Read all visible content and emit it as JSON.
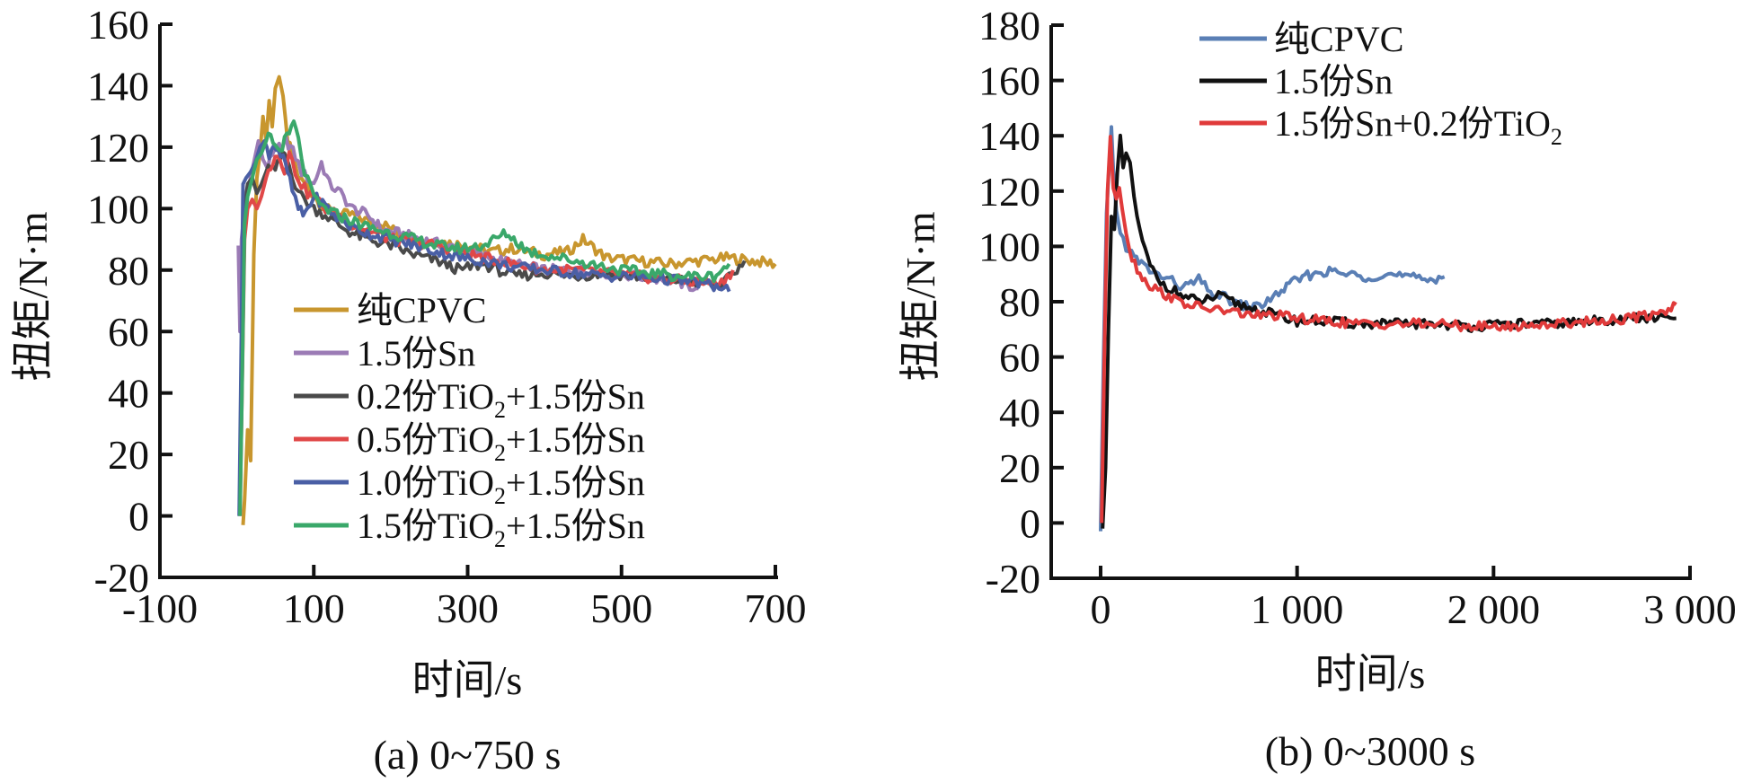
{
  "chart_data": [
    {
      "type": "line",
      "subtitle": "(a) 0~750 s",
      "xlabel": "时间/s",
      "ylabel": "扭矩/N·m",
      "xlim": [
        -100,
        700
      ],
      "ylim": [
        -20,
        160
      ],
      "xticks": [
        "-100",
        "100",
        "300",
        "500",
        "700"
      ],
      "xtick_values": [
        -100,
        100,
        300,
        500,
        700
      ],
      "yticks": [
        "160",
        "140",
        "120",
        "100",
        "80",
        "60",
        "40",
        "20",
        "0",
        "-20"
      ],
      "ytick_values": [
        160,
        140,
        120,
        100,
        80,
        60,
        40,
        20,
        0,
        -20
      ],
      "legend_position": "center",
      "grid": false,
      "series": [
        {
          "name": "纯CPVC",
          "name_main": "纯CPVC",
          "name_sub": "",
          "name_tail": "",
          "color": "#c8962e",
          "x": [
            8,
            10,
            14,
            18,
            22,
            26,
            30,
            34,
            38,
            42,
            46,
            50,
            55,
            60,
            66,
            72,
            80,
            90,
            100,
            115,
            130,
            150,
            170,
            190,
            210,
            240,
            270,
            300,
            330,
            360,
            400,
            430,
            450,
            480,
            520,
            560,
            600,
            640,
            670,
            700
          ],
          "y": [
            -3,
            5,
            28,
            18,
            85,
            110,
            118,
            130,
            122,
            135,
            125,
            138,
            144,
            135,
            122,
            118,
            110,
            108,
            104,
            100,
            98,
            98,
            96,
            95,
            92,
            90,
            89,
            88,
            86,
            87,
            85,
            86,
            90,
            84,
            83,
            82,
            83,
            84,
            83,
            82
          ]
        },
        {
          "name": "1.5份Sn",
          "name_main": "1.5份Sn",
          "name_sub": "",
          "name_tail": "",
          "color": "#9b7bb5",
          "x": [
            2,
            4,
            6,
            10,
            16,
            22,
            28,
            34,
            40,
            46,
            52,
            58,
            64,
            70,
            76,
            84,
            92,
            100,
            110,
            120,
            135,
            150,
            170,
            190,
            210,
            240,
            270,
            300,
            330,
            360,
            400,
            440,
            480,
            520,
            560,
            600
          ],
          "y": [
            88,
            60,
            90,
            100,
            108,
            115,
            122,
            116,
            113,
            118,
            121,
            118,
            122,
            120,
            117,
            112,
            110,
            108,
            115,
            108,
            105,
            100,
            98,
            93,
            92,
            90,
            88,
            86,
            84,
            82,
            80,
            80,
            79,
            78,
            77,
            74
          ]
        },
        {
          "name": "0.2份TiO2+1.5份Sn",
          "name_main": "0.2份TiO",
          "name_sub": "2",
          "name_tail": "+1.5份Sn",
          "color": "#4a4a4a",
          "x": [
            4,
            6,
            10,
            14,
            20,
            26,
            32,
            38,
            44,
            50,
            56,
            62,
            68,
            76,
            84,
            92,
            100,
            115,
            130,
            150,
            170,
            200,
            230,
            260,
            290,
            320,
            360,
            400,
            440,
            480,
            520,
            560,
            600,
            630,
            650,
            660
          ],
          "y": [
            0,
            40,
            100,
            108,
            110,
            105,
            108,
            112,
            114,
            112,
            116,
            118,
            114,
            108,
            104,
            102,
            100,
            98,
            95,
            92,
            90,
            88,
            85,
            83,
            80,
            82,
            78,
            79,
            78,
            79,
            78,
            77,
            76,
            75,
            80,
            83
          ]
        },
        {
          "name": "0.5份TiO2+1.5份Sn",
          "name_main": "0.5份TiO",
          "name_sub": "2",
          "name_tail": "+1.5份Sn",
          "color": "#e04848",
          "x": [
            4,
            6,
            10,
            14,
            20,
            26,
            32,
            38,
            44,
            50,
            56,
            62,
            68,
            76,
            84,
            92,
            100,
            115,
            130,
            150,
            170,
            200,
            230,
            260,
            290,
            320,
            360,
            400,
            440,
            480,
            520,
            560,
            600,
            630,
            645
          ],
          "y": [
            0,
            30,
            90,
            100,
            103,
            100,
            104,
            110,
            114,
            118,
            116,
            113,
            118,
            112,
            108,
            105,
            104,
            100,
            98,
            95,
            93,
            90,
            89,
            88,
            86,
            84,
            82,
            80,
            80,
            79,
            78,
            77,
            76,
            76,
            80
          ]
        },
        {
          "name": "1.0份TiO2+1.5份Sn",
          "name_main": "1.0份TiO",
          "name_sub": "2",
          "name_tail": "+1.5份Sn",
          "color": "#4a5fa5",
          "x": [
            3,
            5,
            8,
            12,
            18,
            24,
            30,
            36,
            42,
            48,
            54,
            60,
            66,
            72,
            80,
            86,
            92,
            100,
            115,
            130,
            150,
            170,
            200,
            230,
            260,
            290,
            320,
            360,
            400,
            440,
            480,
            520,
            560,
            600,
            630,
            640
          ],
          "y": [
            0,
            40,
            108,
            110,
            112,
            115,
            120,
            122,
            118,
            121,
            119,
            116,
            112,
            106,
            100,
            98,
            100,
            104,
            101,
            97,
            94,
            92,
            90,
            88,
            86,
            84,
            83,
            81,
            80,
            79,
            78,
            78,
            77,
            76,
            74,
            73
          ]
        },
        {
          "name": "1.5份TiO2+1.5份Sn",
          "name_main": "1.5份TiO",
          "name_sub": "2",
          "name_tail": "+1.5份Sn",
          "color": "#3aa86a",
          "x": [
            4,
            6,
            10,
            14,
            20,
            26,
            32,
            38,
            44,
            50,
            56,
            62,
            68,
            74,
            80,
            88,
            96,
            104,
            115,
            130,
            150,
            170,
            200,
            230,
            260,
            290,
            320,
            350,
            380,
            420,
            460,
            500,
            540,
            580,
            620,
            640
          ],
          "y": [
            0,
            30,
            95,
            104,
            110,
            116,
            118,
            122,
            124,
            120,
            119,
            122,
            124,
            128,
            122,
            112,
            106,
            102,
            100,
            98,
            96,
            94,
            92,
            90,
            88,
            87,
            88,
            92,
            86,
            84,
            82,
            80,
            79,
            78,
            78,
            82
          ]
        }
      ]
    },
    {
      "type": "line",
      "subtitle": "(b) 0~3000 s",
      "xlabel": "时间/s",
      "ylabel": "扭矩/N·m",
      "xlim": [
        -250,
        3000
      ],
      "ylim": [
        -20,
        180
      ],
      "xticks": [
        "0",
        "1 000",
        "2 000",
        "3 000"
      ],
      "xtick_values": [
        0,
        1000,
        2000,
        3000
      ],
      "yticks": [
        "180",
        "160",
        "140",
        "120",
        "100",
        "80",
        "60",
        "40",
        "20",
        "0",
        "-20"
      ],
      "ytick_values": [
        180,
        160,
        140,
        120,
        100,
        80,
        60,
        40,
        20,
        0,
        -20
      ],
      "legend_position": "top-center",
      "grid": false,
      "series": [
        {
          "name": "纯CPVC",
          "name_main": "纯CPVC",
          "name_sub": "",
          "name_tail": "",
          "color": "#5a7fb5",
          "x": [
            0,
            15,
            30,
            45,
            55,
            65,
            80,
            100,
            130,
            170,
            220,
            280,
            350,
            420,
            500,
            560,
            620,
            700,
            780,
            850,
            920,
            1000,
            1080,
            1150,
            1250,
            1350,
            1450,
            1550,
            1650,
            1750
          ],
          "y": [
            -3,
            60,
            112,
            130,
            144,
            128,
            112,
            105,
            100,
            96,
            93,
            90,
            88,
            85,
            88,
            83,
            82,
            79,
            78,
            80,
            84,
            88,
            90,
            91,
            90,
            89,
            90,
            89,
            88,
            89
          ]
        },
        {
          "name": "1.5份Sn",
          "name_main": "1.5份Sn",
          "name_sub": "",
          "name_tail": "",
          "color": "#111111",
          "x": [
            10,
            25,
            40,
            55,
            70,
            85,
            100,
            115,
            130,
            150,
            170,
            200,
            240,
            290,
            350,
            420,
            500,
            600,
            700,
            800,
            900,
            1000,
            1150,
            1300,
            1500,
            1700,
            1900,
            2100,
            2300,
            2500,
            2700,
            2900,
            2930
          ],
          "y": [
            -2,
            20,
            70,
            110,
            105,
            125,
            140,
            128,
            132,
            130,
            118,
            105,
            95,
            88,
            85,
            82,
            80,
            82,
            79,
            77,
            75,
            73,
            73,
            72,
            72,
            72,
            71,
            72,
            72,
            73,
            74,
            74,
            74
          ]
        },
        {
          "name": "1.5份Sn+0.2份TiO2",
          "name_main": "1.5份Sn+0.2份TiO",
          "name_sub": "2",
          "name_tail": "",
          "color": "#e03a3a",
          "x": [
            5,
            20,
            35,
            50,
            65,
            80,
            95,
            110,
            130,
            160,
            200,
            250,
            320,
            400,
            500,
            600,
            700,
            800,
            900,
            1000,
            1150,
            1300,
            1500,
            1700,
            1900,
            2100,
            2300,
            2500,
            2700,
            2850,
            2930
          ],
          "y": [
            0,
            65,
            120,
            138,
            122,
            118,
            122,
            115,
            105,
            96,
            90,
            86,
            83,
            80,
            78,
            77,
            76,
            75,
            75,
            74,
            73,
            72,
            72,
            72,
            71,
            71,
            72,
            73,
            74,
            76,
            79
          ]
        }
      ]
    }
  ]
}
